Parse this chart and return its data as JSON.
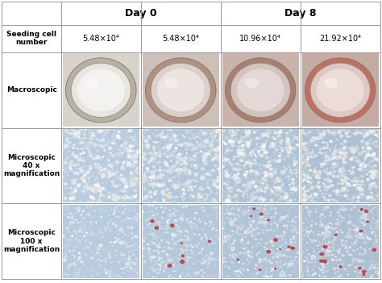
{
  "day0_label": "Day 0",
  "day8_label": "Day 8",
  "row_labels": [
    "Seeding cell\nnumber",
    "Macroscopic",
    "Microscopic\n40 x\nmagnification",
    "Microscopic\n100 x\nmagnification"
  ],
  "col_labels": [
    "5.48×10⁴",
    "5.48×10⁴",
    "10.96×10⁴",
    "21.92×10⁴"
  ],
  "background_color": "#ffffff",
  "grid_color": "#999999",
  "text_color": "#000000",
  "fig_width": 4.74,
  "fig_height": 3.51,
  "dpi": 100,
  "macro_bg": [
    "#d8d4cc",
    "#ccc0b8",
    "#c8b4ac",
    "#c4aca4"
  ],
  "macro_ring_outer": [
    "#b8b0a4",
    "#b09080",
    "#a88070",
    "#c07060"
  ],
  "macro_ring_inner": [
    "#e8e4e0",
    "#dcd0cc",
    "#d4c4c0",
    "#dcc8c4"
  ],
  "macro_center": [
    "#f4f2f0",
    "#ece4e0",
    "#e4d8d4",
    "#ecdcd8"
  ],
  "micro_bg": [
    "#b8cce0",
    "#b4c8dc",
    "#b0c4d8",
    "#aec0d4"
  ],
  "micro40_dot_color": [
    "#d8e4f0",
    "#ccdae8",
    "#c8d6e4",
    "#c4d2e0"
  ],
  "micro100_dot_color": [
    "#d4e0ec",
    "#c8d4e4",
    "#c4d0e0",
    "#c0ccdc"
  ]
}
